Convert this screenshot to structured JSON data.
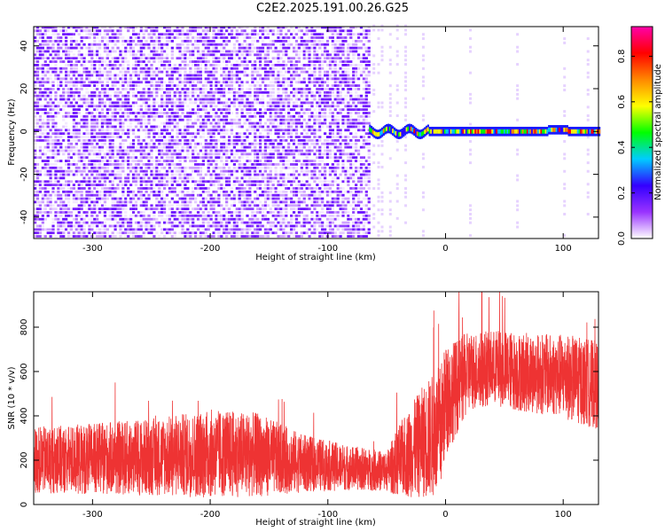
{
  "title": "C2E2.2025.191.00.26.G25",
  "chart_data": [
    {
      "type": "heatmap",
      "xlabel": "Height of straight line (km)",
      "ylabel": "Frequency (Hz)",
      "xlim": [
        -350,
        130
      ],
      "ylim": [
        -50,
        49
      ],
      "x_ticks": [
        -300,
        -200,
        -100,
        0,
        100
      ],
      "x_tick_labels": [
        "-300",
        "-200",
        "-100",
        "0",
        "100"
      ],
      "y_ticks": [
        -40,
        -20,
        0,
        20,
        40
      ],
      "y_tick_labels": [
        "-40",
        "-20",
        "0",
        "20",
        "40"
      ],
      "colorbar": {
        "label": "Normalized spectral amplitude",
        "range": [
          0,
          0.93
        ],
        "ticks": [
          0.0,
          0.2,
          0.4,
          0.6,
          0.8
        ],
        "tick_labels": [
          "0.0",
          "0.2",
          "0.4",
          "0.6",
          "0.8"
        ],
        "colors": [
          "#ffffff",
          "#9933ff",
          "#3300ff",
          "#00ccff",
          "#00ff00",
          "#ffff00",
          "#ff8800",
          "#ff0000",
          "#ff00aa"
        ]
      },
      "regions": [
        {
          "x_range": [
            -350,
            -65
          ],
          "description_level": 0.08
        },
        {
          "x_range": [
            -65,
            130
          ],
          "line_frequency_hz": 0,
          "peak_level": 0.9
        }
      ]
    },
    {
      "type": "line",
      "xlabel": "Height of straight line (km)",
      "ylabel": "SNR (10 * v/v)",
      "xlim": [
        -350,
        130
      ],
      "ylim": [
        0,
        960
      ],
      "x_ticks": [
        -300,
        -200,
        -100,
        0,
        100
      ],
      "x_tick_labels": [
        "-300",
        "-200",
        "-100",
        "0",
        "100"
      ],
      "y_ticks": [
        0,
        200,
        400,
        600,
        800
      ],
      "y_tick_labels": [
        "0",
        "200",
        "400",
        "600",
        "800"
      ],
      "color": "#ee3333",
      "envelope": {
        "x": [
          -350,
          -300,
          -250,
          -200,
          -160,
          -120,
          -80,
          -50,
          -40,
          -20,
          -5,
          0,
          20,
          40,
          60,
          80,
          100,
          120,
          130
        ],
        "mid": [
          200,
          205,
          215,
          230,
          225,
          185,
          165,
          150,
          195,
          280,
          330,
          470,
          600,
          620,
          600,
          590,
          580,
          550,
          540
        ],
        "amp": [
          150,
          160,
          175,
          200,
          190,
          130,
          100,
          90,
          160,
          250,
          300,
          250,
          180,
          170,
          180,
          180,
          190,
          200,
          200
        ]
      }
    }
  ]
}
